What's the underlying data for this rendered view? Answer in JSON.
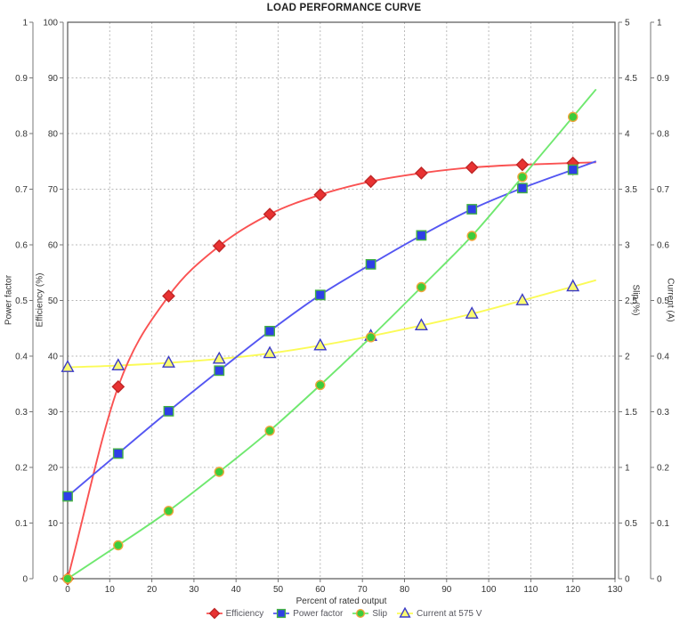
{
  "chart_data": {
    "type": "line",
    "title": "LOAD PERFORMANCE CURVE",
    "xlabel": "Percent of rated output",
    "xlim": [
      0,
      130
    ],
    "x_tick_step": 10,
    "grid": true,
    "legend_position": "bottom",
    "curve_extend_to_x": 125.5,
    "x": [
      0,
      12,
      24,
      36,
      48,
      60,
      72,
      84,
      96,
      108,
      120
    ],
    "axes": [
      {
        "id": "pf",
        "title": "Power factor",
        "side": "left",
        "min": 0,
        "max": 1,
        "tick_step": 0.1
      },
      {
        "id": "eff",
        "title": "Efficiency (%)",
        "side": "left",
        "min": 0,
        "max": 100,
        "tick_step": 10
      },
      {
        "id": "slip",
        "title": "Slip (%)",
        "side": "right",
        "min": 0,
        "max": 5,
        "tick_step": 0.5
      },
      {
        "id": "cur",
        "title": "Current (A)",
        "side": "right",
        "min": 0,
        "max": 1,
        "tick_step": 0.1
      }
    ],
    "series": [
      {
        "name": "Efficiency",
        "axis": "eff",
        "marker": "diamond",
        "colors": {
          "line": "#fa5252",
          "fill": "#e83232",
          "stroke": "#bf2626"
        },
        "values": [
          0,
          34.5,
          50.8,
          59.8,
          65.5,
          69.0,
          71.4,
          72.9,
          73.9,
          74.4,
          74.7
        ]
      },
      {
        "name": "Power factor",
        "axis": "pf",
        "marker": "square",
        "colors": {
          "line": "#5456f2",
          "fill": "#2f3fe6",
          "stroke": "#44b244"
        },
        "values": [
          0.148,
          0.225,
          0.301,
          0.374,
          0.445,
          0.51,
          0.565,
          0.617,
          0.664,
          0.702,
          0.735
        ]
      },
      {
        "name": "Slip",
        "axis": "slip",
        "marker": "circle",
        "colors": {
          "line": "#6fe86f",
          "fill": "#3ccc3c",
          "stroke": "#f0a43a"
        },
        "values": [
          0,
          0.3,
          0.61,
          0.96,
          1.33,
          1.74,
          2.17,
          2.62,
          3.08,
          3.61,
          4.15
        ]
      },
      {
        "name": "Current at 575 V",
        "axis": "cur",
        "marker": "triangle",
        "colors": {
          "line": "#fbfb57",
          "fill": "#fafa72",
          "stroke": "#3a3ac8"
        },
        "values": [
          0.38,
          0.383,
          0.388,
          0.395,
          0.405,
          0.419,
          0.436,
          0.455,
          0.476,
          0.5,
          0.525
        ]
      }
    ],
    "draw_order": [
      3,
      0,
      1,
      2
    ]
  }
}
